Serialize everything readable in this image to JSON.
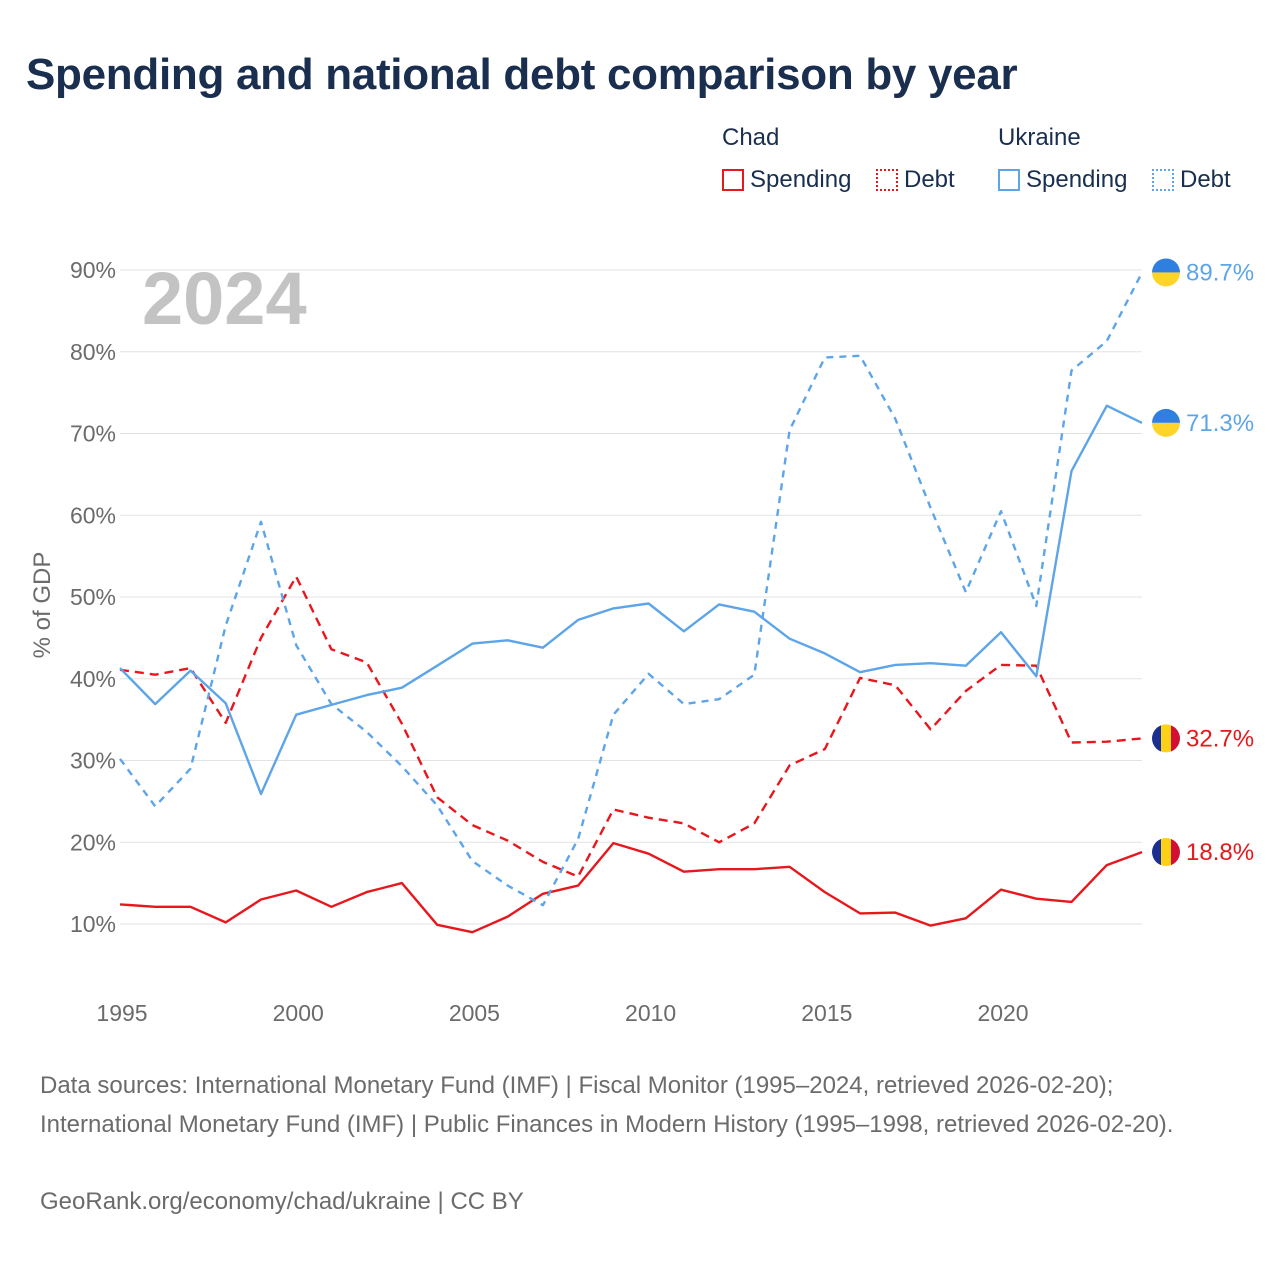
{
  "title": "Spending and national debt comparison by year",
  "legend": {
    "groups": [
      {
        "name": "Chad",
        "items": [
          "Spending",
          "Debt"
        ]
      },
      {
        "name": "Ukraine",
        "items": [
          "Spending",
          "Debt"
        ]
      }
    ]
  },
  "colors": {
    "chad": "#e8171d",
    "ukraine": "#5da5e8",
    "grid": "#e3e3e3",
    "axis_text": "#6b6b6b",
    "year_label": "#c3c3c3"
  },
  "chart_data": {
    "type": "line",
    "year_label": "2024",
    "ylabel": "% of GDP",
    "ylim": [
      0,
      90
    ],
    "xlim": [
      1995,
      2024
    ],
    "y_ticks": [
      10,
      20,
      30,
      40,
      50,
      60,
      70,
      80,
      90
    ],
    "y_tick_labels": [
      "10%",
      "20%",
      "30%",
      "40%",
      "50%",
      "60%",
      "70%",
      "80%",
      "90%"
    ],
    "x_ticks": [
      1995,
      2000,
      2005,
      2010,
      2015,
      2020
    ],
    "x_tick_labels": [
      "1995",
      "2000",
      "2005",
      "2010",
      "2015",
      "2020"
    ],
    "series": [
      {
        "name": "Chad Spending",
        "country": "chad",
        "style": "solid",
        "end_label": "18.8%",
        "x": [
          1995,
          1996,
          1997,
          1998,
          1999,
          2000,
          2001,
          2002,
          2003,
          2004,
          2005,
          2006,
          2007,
          2008,
          2009,
          2010,
          2011,
          2012,
          2013,
          2014,
          2015,
          2016,
          2017,
          2018,
          2019,
          2020,
          2021,
          2022,
          2023,
          2024
        ],
        "values": [
          12.4,
          12.1,
          12.1,
          10.2,
          13.0,
          14.1,
          12.1,
          13.9,
          15.0,
          9.9,
          9.0,
          10.9,
          13.7,
          14.7,
          19.9,
          18.6,
          16.4,
          16.7,
          16.7,
          17.0,
          13.9,
          11.3,
          11.4,
          9.8,
          10.7,
          14.2,
          13.1,
          12.7,
          17.2,
          18.8
        ]
      },
      {
        "name": "Chad Debt",
        "country": "chad",
        "style": "dashed",
        "end_label": "32.7%",
        "x": [
          1995,
          1996,
          1997,
          1998,
          1999,
          2000,
          2001,
          2002,
          2003,
          2004,
          2005,
          2006,
          2007,
          2008,
          2009,
          2010,
          2011,
          2012,
          2013,
          2014,
          2015,
          2016,
          2017,
          2018,
          2019,
          2020,
          2021,
          2022,
          2023,
          2024
        ],
        "values": [
          41.1,
          40.5,
          41.3,
          34.6,
          45.0,
          52.5,
          43.6,
          42.0,
          34.5,
          25.5,
          22.1,
          20.2,
          17.6,
          15.8,
          24.0,
          23.0,
          22.3,
          20.0,
          22.3,
          29.4,
          31.4,
          40.1,
          39.2,
          33.8,
          38.5,
          41.7,
          41.6,
          32.2,
          32.3,
          32.7
        ]
      },
      {
        "name": "Ukraine Spending",
        "country": "ukraine",
        "style": "solid",
        "end_label": "71.3%",
        "x": [
          1995,
          1996,
          1997,
          1998,
          1999,
          2000,
          2001,
          2002,
          2003,
          2004,
          2005,
          2006,
          2007,
          2008,
          2009,
          2010,
          2011,
          2012,
          2013,
          2014,
          2015,
          2016,
          2017,
          2018,
          2019,
          2020,
          2021,
          2022,
          2023,
          2024
        ],
        "values": [
          41.3,
          36.9,
          41.0,
          37.0,
          25.9,
          35.6,
          36.8,
          38.0,
          38.9,
          41.6,
          44.3,
          44.7,
          43.8,
          47.2,
          48.6,
          49.2,
          45.8,
          49.1,
          48.2,
          44.9,
          43.1,
          40.8,
          41.7,
          41.9,
          41.6,
          45.7,
          40.3,
          65.4,
          73.4,
          71.3
        ]
      },
      {
        "name": "Ukraine Debt",
        "country": "ukraine",
        "style": "dotted",
        "end_label": "89.7%",
        "x": [
          1995,
          1996,
          1997,
          1998,
          1999,
          2000,
          2001,
          2002,
          2003,
          2004,
          2005,
          2006,
          2007,
          2008,
          2009,
          2010,
          2011,
          2012,
          2013,
          2014,
          2015,
          2016,
          2017,
          2018,
          2019,
          2020,
          2021,
          2022,
          2023,
          2024
        ],
        "values": [
          30.2,
          24.4,
          29.0,
          46.5,
          59.2,
          44.1,
          36.9,
          33.5,
          29.3,
          24.5,
          17.7,
          14.7,
          12.3,
          20.4,
          35.6,
          40.6,
          36.9,
          37.5,
          40.5,
          70.4,
          79.3,
          79.5,
          71.8,
          60.9,
          50.6,
          60.5,
          48.9,
          77.7,
          81.3,
          89.7
        ]
      }
    ]
  },
  "footer": {
    "sources": "Data sources: International Monetary Fund (IMF) | Fiscal Monitor (1995–2024, retrieved 2026-02-20); International Monetary Fund (IMF) | Public Finances in Modern History (1995–1998, retrieved 2026-02-20).",
    "credit": "GeoRank.org/economy/chad/ukraine | CC BY"
  }
}
